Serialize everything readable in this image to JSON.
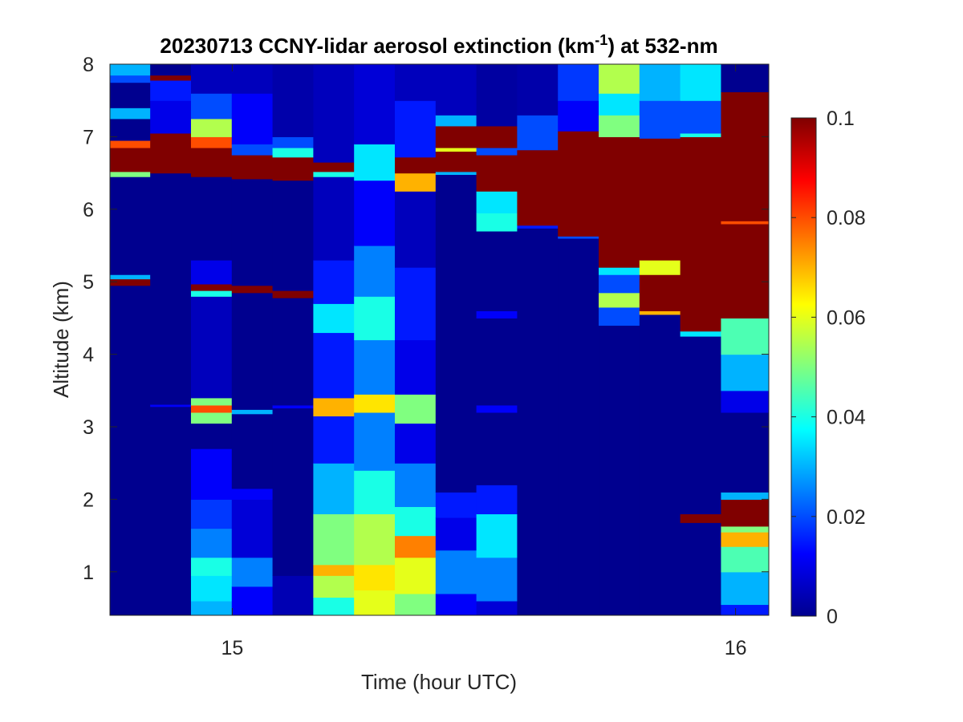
{
  "chart_data": {
    "type": "heatmap",
    "title_main": "20230713 CCNY-lidar aerosol extinction (km",
    "title_sup": "-1",
    "title_tail": ") at 532-nm",
    "xlabel": "Time (hour UTC)",
    "ylabel": "Altitude (km)",
    "xlim": [
      14.757,
      16.066
    ],
    "ylim": [
      0.4,
      8.0
    ],
    "x_ticks": [
      15,
      16
    ],
    "x_tick_labels": [
      "15",
      "16"
    ],
    "y_ticks": [
      1,
      2,
      3,
      4,
      5,
      6,
      7,
      8
    ],
    "y_tick_labels": [
      "1",
      "2",
      "3",
      "4",
      "5",
      "6",
      "7",
      "8"
    ],
    "colorbar": {
      "range": [
        0,
        0.1
      ],
      "ticks": [
        0,
        0.02,
        0.04,
        0.06,
        0.08,
        0.1
      ],
      "tick_labels": [
        "0",
        "0.02",
        "0.04",
        "0.06",
        "0.08",
        "0.1"
      ],
      "colormap": "jet"
    },
    "columns": [
      {
        "t0": 14.757,
        "t1": 14.837,
        "segments": [
          [
            0.4,
            4.95,
            0.0
          ],
          [
            4.95,
            5.04,
            0.1
          ],
          [
            5.04,
            5.1,
            0.03
          ],
          [
            5.1,
            6.45,
            0.0
          ],
          [
            6.45,
            6.52,
            0.05
          ],
          [
            6.52,
            6.85,
            0.1
          ],
          [
            6.85,
            6.95,
            0.08
          ],
          [
            6.95,
            7.25,
            0.0
          ],
          [
            7.25,
            7.4,
            0.03
          ],
          [
            7.4,
            7.75,
            0.0
          ],
          [
            7.75,
            7.85,
            0.02
          ],
          [
            7.85,
            8.0,
            0.03
          ]
        ]
      },
      {
        "t0": 14.837,
        "t1": 14.918,
        "segments": [
          [
            0.4,
            3.28,
            0.0
          ],
          [
            3.28,
            3.31,
            0.012
          ],
          [
            3.31,
            6.5,
            0.0
          ],
          [
            6.5,
            7.05,
            0.1
          ],
          [
            7.05,
            7.5,
            0.01
          ],
          [
            7.5,
            7.78,
            0.015
          ],
          [
            7.78,
            7.85,
            0.1
          ],
          [
            7.85,
            8.0,
            0.0
          ]
        ]
      },
      {
        "t0": 14.918,
        "t1": 14.999,
        "segments": [
          [
            0.4,
            0.6,
            0.03
          ],
          [
            0.6,
            0.95,
            0.035
          ],
          [
            0.95,
            1.2,
            0.04
          ],
          [
            1.2,
            1.6,
            0.025
          ],
          [
            1.6,
            2.0,
            0.018
          ],
          [
            2.0,
            2.7,
            0.012
          ],
          [
            2.7,
            3.05,
            0.0
          ],
          [
            3.05,
            3.2,
            0.05
          ],
          [
            3.2,
            3.3,
            0.08
          ],
          [
            3.3,
            3.4,
            0.05
          ],
          [
            3.4,
            4.8,
            0.005
          ],
          [
            4.8,
            4.88,
            0.04
          ],
          [
            4.88,
            4.97,
            0.1
          ],
          [
            4.97,
            5.3,
            0.01
          ],
          [
            5.3,
            6.45,
            0.0
          ],
          [
            6.45,
            6.85,
            0.1
          ],
          [
            6.85,
            7.0,
            0.08
          ],
          [
            7.0,
            7.25,
            0.055
          ],
          [
            7.25,
            7.6,
            0.02
          ],
          [
            7.6,
            8.0,
            0.005
          ]
        ]
      },
      {
        "t0": 14.999,
        "t1": 15.08,
        "segments": [
          [
            0.4,
            0.8,
            0.012
          ],
          [
            0.8,
            1.2,
            0.025
          ],
          [
            1.2,
            2.0,
            0.008
          ],
          [
            2.0,
            2.15,
            0.012
          ],
          [
            2.15,
            3.18,
            0.0
          ],
          [
            3.18,
            3.24,
            0.03
          ],
          [
            3.24,
            4.85,
            0.0
          ],
          [
            4.85,
            4.95,
            0.1
          ],
          [
            4.95,
            6.42,
            0.0
          ],
          [
            6.42,
            6.75,
            0.1
          ],
          [
            6.75,
            6.9,
            0.02
          ],
          [
            6.9,
            7.6,
            0.012
          ],
          [
            7.6,
            8.0,
            0.005
          ]
        ]
      },
      {
        "t0": 15.08,
        "t1": 15.161,
        "segments": [
          [
            0.4,
            0.95,
            0.004
          ],
          [
            0.95,
            3.26,
            0.0
          ],
          [
            3.26,
            3.3,
            0.012
          ],
          [
            3.3,
            4.78,
            0.0
          ],
          [
            4.78,
            4.88,
            0.1
          ],
          [
            4.88,
            6.4,
            0.0
          ],
          [
            6.4,
            6.72,
            0.1
          ],
          [
            6.72,
            6.85,
            0.04
          ],
          [
            6.85,
            7.0,
            0.02
          ],
          [
            7.0,
            8.0,
            0.003
          ]
        ]
      },
      {
        "t0": 15.161,
        "t1": 15.242,
        "segments": [
          [
            0.4,
            0.65,
            0.04
          ],
          [
            0.65,
            0.95,
            0.055
          ],
          [
            0.95,
            1.1,
            0.07
          ],
          [
            1.1,
            1.8,
            0.05
          ],
          [
            1.8,
            2.5,
            0.03
          ],
          [
            2.5,
            3.15,
            0.015
          ],
          [
            3.15,
            3.4,
            0.07
          ],
          [
            3.4,
            4.3,
            0.015
          ],
          [
            4.3,
            4.7,
            0.035
          ],
          [
            4.7,
            5.3,
            0.015
          ],
          [
            5.3,
            6.45,
            0.005
          ],
          [
            6.45,
            6.52,
            0.04
          ],
          [
            6.52,
            6.65,
            0.1
          ],
          [
            6.65,
            8.0,
            0.005
          ]
        ]
      },
      {
        "t0": 15.242,
        "t1": 15.323,
        "segments": [
          [
            0.4,
            0.75,
            0.06
          ],
          [
            0.75,
            1.1,
            0.065
          ],
          [
            1.1,
            1.8,
            0.055
          ],
          [
            1.8,
            2.4,
            0.04
          ],
          [
            2.4,
            3.2,
            0.025
          ],
          [
            3.2,
            3.45,
            0.065
          ],
          [
            3.45,
            4.2,
            0.025
          ],
          [
            4.2,
            4.8,
            0.04
          ],
          [
            4.8,
            5.5,
            0.025
          ],
          [
            5.5,
            6.4,
            0.012
          ],
          [
            6.4,
            6.9,
            0.035
          ],
          [
            6.9,
            8.0,
            0.008
          ]
        ]
      },
      {
        "t0": 15.323,
        "t1": 15.404,
        "segments": [
          [
            0.4,
            0.7,
            0.05
          ],
          [
            0.7,
            1.2,
            0.06
          ],
          [
            1.2,
            1.5,
            0.075
          ],
          [
            1.5,
            1.9,
            0.04
          ],
          [
            1.9,
            2.5,
            0.025
          ],
          [
            2.5,
            3.05,
            0.01
          ],
          [
            3.05,
            3.45,
            0.05
          ],
          [
            3.45,
            4.2,
            0.01
          ],
          [
            4.2,
            5.2,
            0.015
          ],
          [
            5.2,
            6.25,
            0.005
          ],
          [
            6.25,
            6.5,
            0.07
          ],
          [
            6.5,
            6.72,
            0.1
          ],
          [
            6.72,
            7.5,
            0.015
          ],
          [
            7.5,
            8.0,
            0.005
          ]
        ]
      },
      {
        "t0": 15.404,
        "t1": 15.485,
        "segments": [
          [
            0.4,
            0.7,
            0.012
          ],
          [
            0.7,
            1.3,
            0.025
          ],
          [
            1.3,
            1.75,
            0.01
          ],
          [
            1.75,
            2.1,
            0.015
          ],
          [
            2.1,
            6.48,
            0.0
          ],
          [
            6.48,
            6.52,
            0.03
          ],
          [
            6.52,
            6.8,
            0.1
          ],
          [
            6.8,
            6.85,
            0.06
          ],
          [
            6.85,
            7.15,
            0.1
          ],
          [
            7.15,
            7.3,
            0.03
          ],
          [
            7.3,
            8.0,
            0.005
          ]
        ]
      },
      {
        "t0": 15.485,
        "t1": 15.566,
        "segments": [
          [
            0.4,
            0.6,
            0.008
          ],
          [
            0.6,
            1.2,
            0.025
          ],
          [
            1.2,
            1.8,
            0.035
          ],
          [
            1.8,
            2.2,
            0.015
          ],
          [
            2.2,
            3.2,
            0.0
          ],
          [
            3.2,
            3.3,
            0.012
          ],
          [
            3.3,
            4.5,
            0.0
          ],
          [
            4.5,
            4.6,
            0.012
          ],
          [
            4.6,
            5.7,
            0.0
          ],
          [
            5.7,
            5.95,
            0.04
          ],
          [
            5.95,
            6.25,
            0.035
          ],
          [
            6.25,
            6.75,
            0.1
          ],
          [
            6.75,
            6.85,
            0.02
          ],
          [
            6.85,
            7.15,
            0.1
          ],
          [
            7.15,
            8.0,
            0.002
          ]
        ]
      },
      {
        "t0": 15.566,
        "t1": 15.647,
        "segments": [
          [
            0.4,
            5.74,
            0.0
          ],
          [
            5.74,
            5.78,
            0.015
          ],
          [
            5.78,
            6.82,
            0.1
          ],
          [
            6.82,
            7.3,
            0.02
          ],
          [
            7.3,
            8.0,
            0.003
          ]
        ]
      },
      {
        "t0": 15.647,
        "t1": 15.728,
        "segments": [
          [
            0.4,
            5.6,
            0.0
          ],
          [
            5.6,
            5.63,
            0.02
          ],
          [
            5.63,
            7.08,
            0.1
          ],
          [
            7.08,
            7.5,
            0.012
          ],
          [
            7.5,
            8.0,
            0.018
          ]
        ]
      },
      {
        "t0": 15.728,
        "t1": 15.809,
        "segments": [
          [
            0.4,
            4.4,
            0.0
          ],
          [
            4.4,
            4.65,
            0.02
          ],
          [
            4.65,
            4.85,
            0.055
          ],
          [
            4.85,
            5.1,
            0.02
          ],
          [
            5.1,
            5.2,
            0.035
          ],
          [
            5.2,
            7.0,
            0.1
          ],
          [
            7.0,
            7.3,
            0.05
          ],
          [
            7.3,
            7.6,
            0.035
          ],
          [
            7.6,
            8.0,
            0.055
          ]
        ]
      },
      {
        "t0": 15.809,
        "t1": 15.89,
        "segments": [
          [
            0.4,
            4.55,
            0.0
          ],
          [
            4.55,
            4.6,
            0.07
          ],
          [
            4.6,
            5.1,
            0.1
          ],
          [
            5.1,
            5.3,
            0.06
          ],
          [
            5.3,
            6.98,
            0.1
          ],
          [
            6.98,
            7.5,
            0.02
          ],
          [
            7.5,
            8.0,
            0.03
          ]
        ]
      },
      {
        "t0": 15.89,
        "t1": 15.971,
        "segments": [
          [
            0.4,
            1.68,
            0.0
          ],
          [
            1.68,
            1.8,
            0.1
          ],
          [
            1.8,
            4.25,
            0.0
          ],
          [
            4.25,
            4.32,
            0.035
          ],
          [
            4.32,
            7.0,
            0.1
          ],
          [
            7.0,
            7.05,
            0.04
          ],
          [
            7.05,
            7.5,
            0.02
          ],
          [
            7.5,
            8.0,
            0.035
          ]
        ]
      },
      {
        "t0": 15.971,
        "t1": 16.066,
        "segments": [
          [
            0.4,
            0.55,
            0.015
          ],
          [
            0.55,
            1.0,
            0.03
          ],
          [
            1.0,
            1.35,
            0.045
          ],
          [
            1.35,
            1.55,
            0.07
          ],
          [
            1.55,
            1.63,
            0.05
          ],
          [
            1.63,
            2.0,
            0.1
          ],
          [
            2.0,
            2.1,
            0.03
          ],
          [
            2.1,
            3.2,
            0.0
          ],
          [
            3.2,
            3.5,
            0.01
          ],
          [
            3.5,
            4.0,
            0.03
          ],
          [
            4.0,
            4.5,
            0.045
          ],
          [
            4.5,
            5.8,
            0.1
          ],
          [
            5.8,
            5.84,
            0.08
          ],
          [
            5.84,
            7.62,
            0.1
          ],
          [
            7.62,
            8.0,
            0.0
          ]
        ]
      }
    ]
  }
}
